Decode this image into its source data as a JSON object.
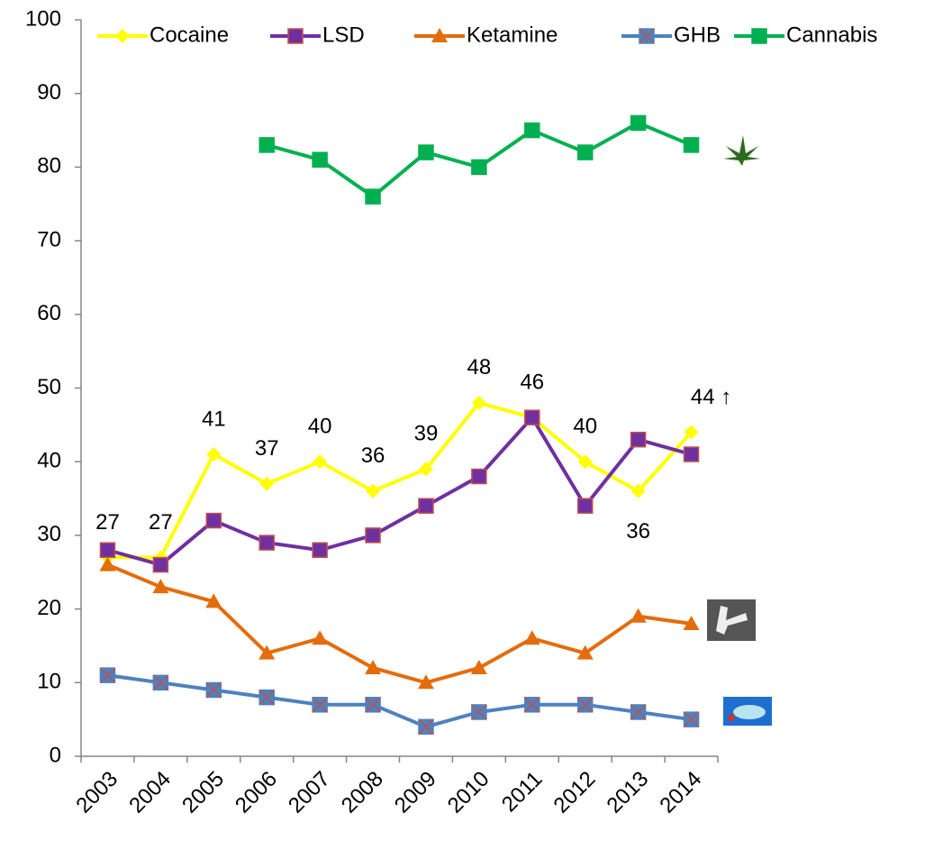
{
  "chart_data": {
    "type": "line",
    "categories": [
      "2003",
      "2004",
      "2005",
      "2006",
      "2007",
      "2008",
      "2009",
      "2010",
      "2011",
      "2012",
      "2013",
      "2014"
    ],
    "ylim": [
      0,
      100
    ],
    "yticks": [
      0,
      10,
      20,
      30,
      40,
      50,
      60,
      70,
      80,
      90,
      100
    ],
    "legend": "top",
    "series": [
      {
        "name": "Cocaine",
        "color": "#ffff00",
        "marker": "diamond",
        "values": [
          27,
          27,
          41,
          37,
          40,
          36,
          39,
          48,
          46,
          40,
          36,
          44
        ],
        "value_labels": [
          "27",
          "27",
          "41",
          "37",
          "40",
          "36",
          "39",
          "48",
          "46",
          "40",
          "36",
          "44 ↑"
        ]
      },
      {
        "name": "LSD",
        "color": "#7030a0",
        "marker": "square",
        "values": [
          28,
          26,
          32,
          29,
          28,
          30,
          34,
          38,
          46,
          34,
          43,
          41
        ]
      },
      {
        "name": "Ketamine",
        "color": "#e46c0a",
        "marker": "triangle",
        "values": [
          26,
          23,
          21,
          14,
          16,
          12,
          10,
          12,
          16,
          14,
          19,
          18
        ]
      },
      {
        "name": "GHB",
        "color": "#4f81bd",
        "marker": "xsquare",
        "values": [
          11,
          10,
          9,
          8,
          7,
          7,
          4,
          6,
          7,
          7,
          6,
          5
        ]
      },
      {
        "name": "Cannabis",
        "color": "#00b050",
        "marker": "square",
        "values": [
          null,
          null,
          null,
          83,
          81,
          76,
          82,
          80,
          85,
          82,
          86,
          83
        ]
      }
    ]
  }
}
